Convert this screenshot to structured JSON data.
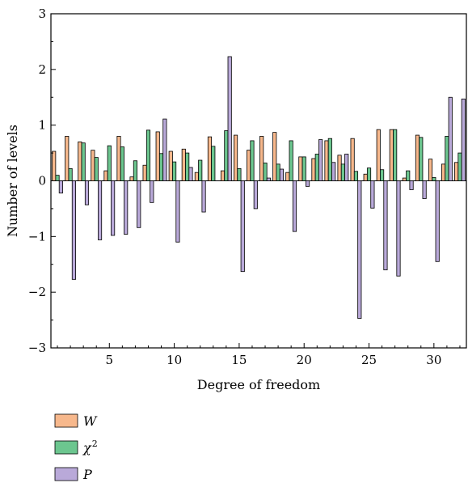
{
  "chart_data": {
    "type": "bar",
    "xlabel": "Degree of freedom",
    "ylabel": "Number of levels",
    "xlim": [
      0.5,
      32.5
    ],
    "ylim": [
      -3,
      3
    ],
    "xticks": [
      "5",
      "10",
      "15",
      "20",
      "25",
      "30"
    ],
    "yticks": [
      "−3",
      "−2",
      "−1",
      "0",
      "1",
      "2",
      "3"
    ],
    "legend_position": "below",
    "x": [
      1,
      2,
      3,
      4,
      5,
      6,
      7,
      8,
      9,
      10,
      11,
      12,
      13,
      14,
      15,
      16,
      17,
      18,
      19,
      20,
      21,
      22,
      23,
      24,
      25,
      26,
      27,
      28,
      29,
      30,
      31,
      32
    ],
    "series": [
      {
        "name": "W",
        "color": "#f7b88c",
        "values": [
          0.53,
          0.8,
          0.7,
          0.55,
          0.18,
          0.8,
          0.07,
          0.28,
          0.88,
          0.53,
          0.57,
          0.15,
          0.79,
          0.18,
          0.82,
          0.55,
          0.8,
          0.87,
          0.15,
          0.43,
          0.4,
          0.72,
          0.46,
          0.76,
          0.12,
          0.92,
          0.92,
          0.05,
          0.82,
          0.39,
          0.3,
          0.33
        ]
      },
      {
        "name": "χ",
        "name_sup": "2",
        "color": "#6cc68f",
        "values": [
          0.1,
          0.22,
          0.68,
          0.42,
          0.63,
          0.61,
          0.36,
          0.91,
          0.49,
          0.34,
          0.5,
          0.37,
          0.62,
          0.9,
          0.22,
          0.72,
          0.32,
          0.3,
          0.72,
          0.43,
          0.48,
          0.76,
          0.3,
          0.17,
          0.23,
          0.2,
          0.92,
          0.18,
          0.78,
          0.06,
          0.8,
          0.5
        ]
      },
      {
        "name": "P",
        "color": "#b9a9d9",
        "values": [
          -0.22,
          -1.77,
          -0.43,
          -1.06,
          -0.98,
          -0.96,
          -0.84,
          -0.39,
          1.11,
          -1.1,
          0.24,
          -0.56,
          0.0,
          2.23,
          -1.63,
          -0.5,
          0.05,
          0.21,
          -0.91,
          -0.1,
          0.74,
          0.33,
          0.48,
          -2.47,
          -0.49,
          -1.6,
          -1.71,
          -0.16,
          -0.32,
          -1.45,
          1.5,
          1.47
        ]
      }
    ]
  }
}
